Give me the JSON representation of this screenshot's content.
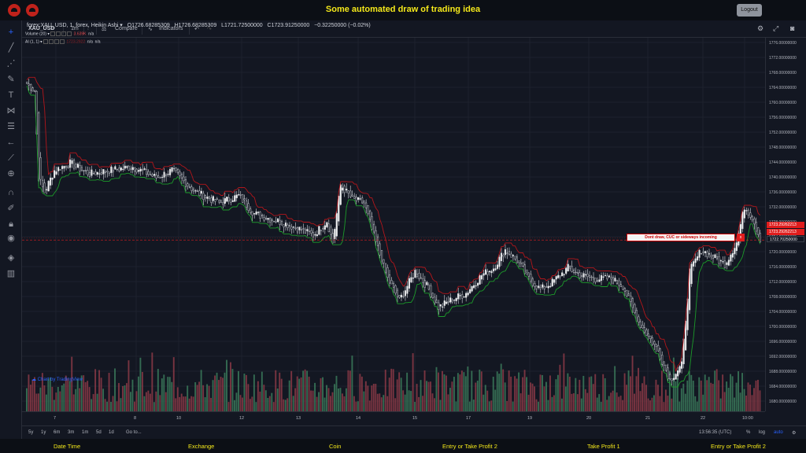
{
  "header": {
    "title": "Some automated draw of trading idea",
    "logout_label": "Logout"
  },
  "toolbar": {
    "symbol": "XAU_USD",
    "interval": "1m",
    "compare_label": "Compare",
    "indicators_label": "Indicators"
  },
  "legend": {
    "main": "forex:XAU_USD, 1, forex, Heikin Ashi",
    "open": "O1726.68285309",
    "high": "H1726.68285309",
    "low": "L1721.72500000",
    "close": "C1723.91250000",
    "change": "−0.32250000 (−0.02%)",
    "volume_label": "Volume (20)",
    "volume_value": "3.639K",
    "volume_na": "n/a",
    "ai_label": "AI (1, 1)",
    "ai_value": "1723.2922",
    "ai_na1": "n/a",
    "ai_na2": "n/a"
  },
  "watermark": "Chart by TradingView",
  "note": {
    "text": "Dont draw, CUC or sideways incoming",
    "button": "x"
  },
  "price_axis": {
    "ticks": [
      "1776.00000000",
      "1772.00000000",
      "1768.00000000",
      "1764.00000000",
      "1760.00000000",
      "1756.00000000",
      "1752.00000000",
      "1748.00000000",
      "1744.00000000",
      "1740.00000000",
      "1736.00000000",
      "1732.00000000",
      "1728.00000000",
      "1724.00000000",
      "1720.00000000",
      "1716.00000000",
      "1712.00000000",
      "1708.00000000",
      "1704.00000000",
      "1700.00000000",
      "1696.00000000",
      "1692.00000000",
      "1688.00000000",
      "1684.00000000",
      "1680.00000000"
    ],
    "tag1": "1723.29262213",
    "tag2": "1723.29262213",
    "tag3": "1722.70250000"
  },
  "time_axis": {
    "ticks": [
      "7",
      "8",
      "10",
      "12",
      "13",
      "14",
      "15",
      "17",
      "19",
      "20",
      "21",
      "22",
      "10:00"
    ]
  },
  "bottom": {
    "ranges": [
      "5y",
      "1y",
      "6m",
      "3m",
      "1m",
      "5d",
      "1d"
    ],
    "goto": "Go to...",
    "time": "13:56:35 (UTC)",
    "percent": "%",
    "log": "log",
    "auto": "auto"
  },
  "footer": {
    "labels": [
      "Date Time",
      "Exchange",
      "Coin",
      "Entry or Take Profit 2",
      "Take Profit 1",
      "Entry or Take Profit 2"
    ]
  },
  "chart_data": {
    "type": "candlestick",
    "colors": {
      "up": "#f0f0f0",
      "down": "#1a1e28",
      "high_line": "#b2161b",
      "low_line": "#1c9a2a",
      "vol_up": "#3b7a5a",
      "vol_down": "#8c3a46"
    },
    "anchors": [
      [
        0,
        1766
      ],
      [
        4,
        1764
      ],
      [
        6,
        1740
      ],
      [
        9,
        1736
      ],
      [
        14,
        1742
      ],
      [
        22,
        1744
      ],
      [
        32,
        1741
      ],
      [
        42,
        1742
      ],
      [
        54,
        1743
      ],
      [
        66,
        1740
      ],
      [
        74,
        1742
      ],
      [
        86,
        1736
      ],
      [
        98,
        1733
      ],
      [
        108,
        1735
      ],
      [
        116,
        1730
      ],
      [
        128,
        1728
      ],
      [
        138,
        1726
      ],
      [
        146,
        1724
      ],
      [
        153,
        1728
      ],
      [
        156,
        1722
      ],
      [
        160,
        1738
      ],
      [
        166,
        1734
      ],
      [
        172,
        1733
      ],
      [
        178,
        1722
      ],
      [
        184,
        1712
      ],
      [
        190,
        1706
      ],
      [
        198,
        1714
      ],
      [
        204,
        1710
      ],
      [
        210,
        1704
      ],
      [
        216,
        1706
      ],
      [
        224,
        1708
      ],
      [
        232,
        1713
      ],
      [
        238,
        1715
      ],
      [
        244,
        1720
      ],
      [
        250,
        1717
      ],
      [
        256,
        1712
      ],
      [
        262,
        1709
      ],
      [
        268,
        1711
      ],
      [
        276,
        1715
      ],
      [
        282,
        1713
      ],
      [
        290,
        1712
      ],
      [
        298,
        1712
      ],
      [
        304,
        1710
      ],
      [
        312,
        1700
      ],
      [
        322,
        1692
      ],
      [
        328,
        1684
      ],
      [
        334,
        1688
      ],
      [
        338,
        1714
      ],
      [
        344,
        1720
      ],
      [
        350,
        1718
      ],
      [
        356,
        1716
      ],
      [
        362,
        1722
      ],
      [
        366,
        1732
      ],
      [
        370,
        1729
      ],
      [
        374,
        1723
      ]
    ],
    "ylim": [
      1677,
      1777
    ],
    "bars": 375
  }
}
